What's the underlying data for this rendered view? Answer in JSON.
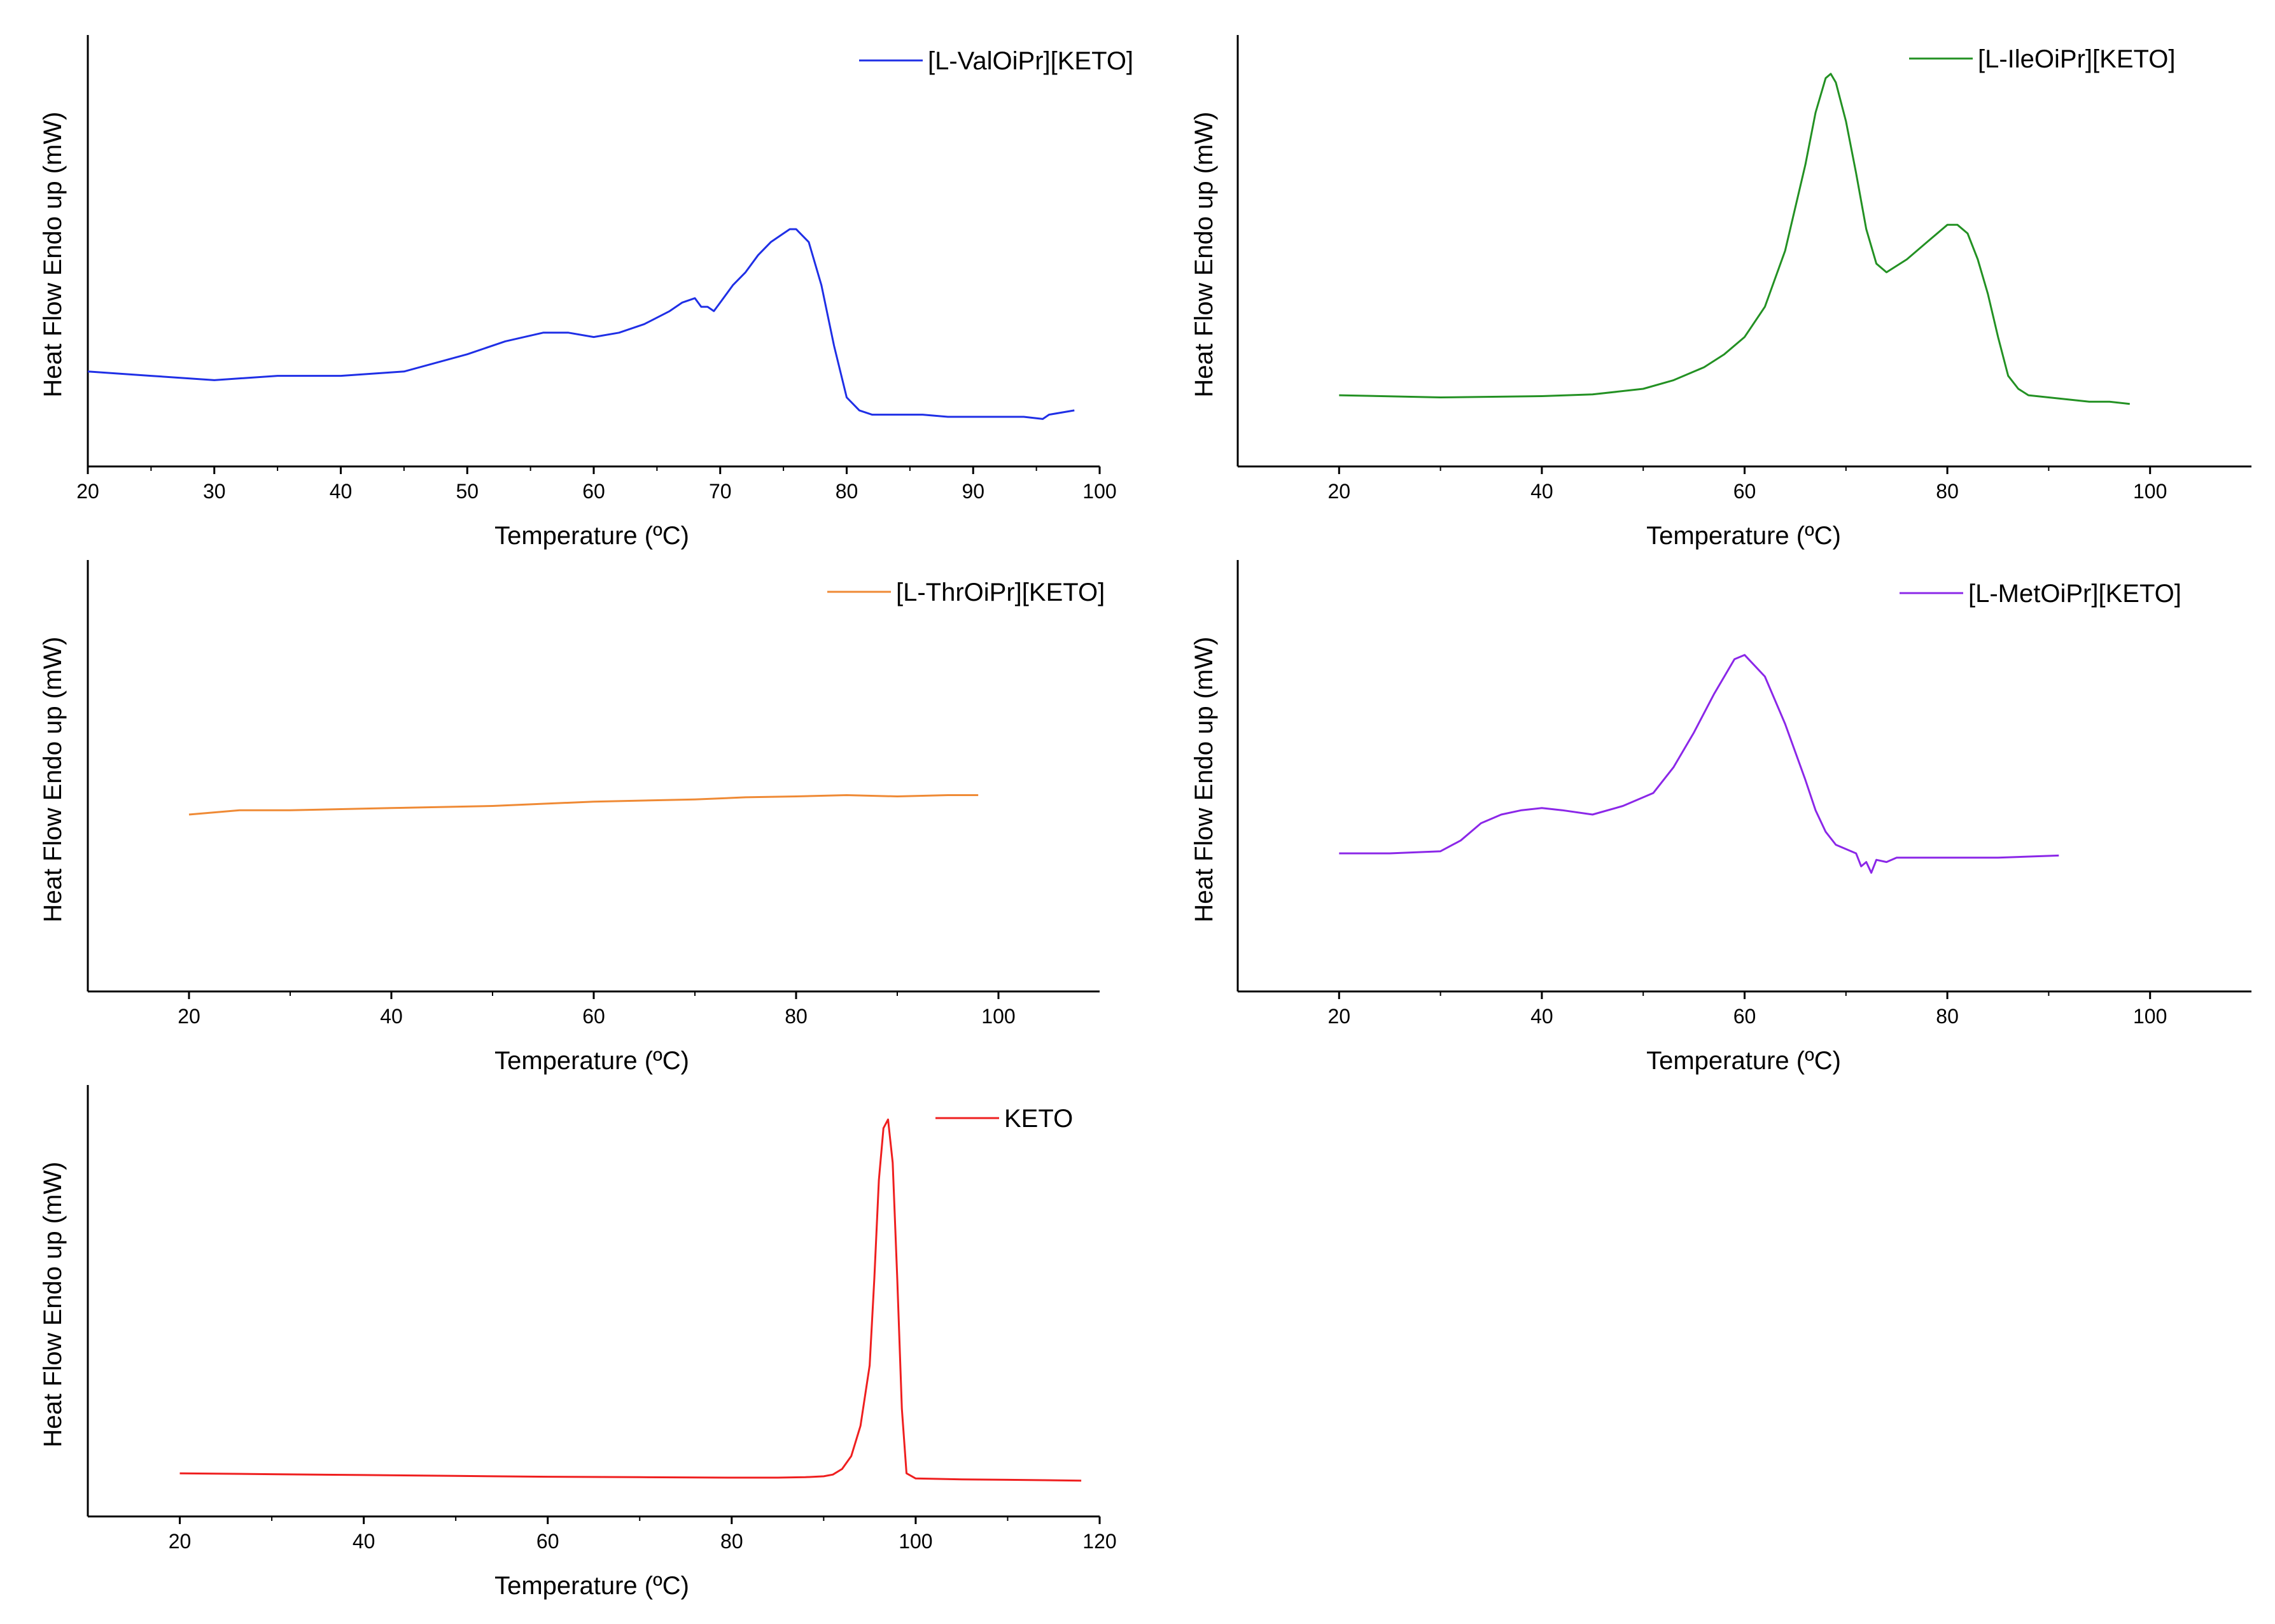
{
  "figure_type": "DSC thermograms",
  "chart_data": [
    {
      "id": "panel-valoipr",
      "type": "line",
      "xlabel": "Temperature (°C)",
      "xlabel_display": "Temperature (ºC)",
      "ylabel": "Heat Flow Endo up (mW)",
      "xlim": [
        20,
        100
      ],
      "xticks": [
        20,
        30,
        40,
        50,
        60,
        70,
        80,
        90,
        100
      ],
      "xtick_labels": [
        "20",
        "30",
        "40",
        "50",
        "60",
        "70",
        "80",
        "90",
        "100"
      ],
      "ylim": [
        0,
        1
      ],
      "y_ticks_shown": false,
      "legend": {
        "label": "[L-ValOiPr][KETO]",
        "position": "top-right"
      },
      "series": [
        {
          "name": "[L-ValOiPr][KETO]",
          "color": "#1f2fe6",
          "x": [
            20,
            25,
            30,
            35,
            40,
            45,
            50,
            53,
            56,
            58,
            60,
            62,
            64,
            66,
            67,
            68,
            68.5,
            69,
            69.5,
            70,
            71,
            72,
            73,
            74,
            75,
            75.5,
            76,
            77,
            78,
            79,
            80,
            81,
            82,
            84,
            86,
            88,
            90,
            92,
            94,
            95.5,
            96,
            98
          ],
          "y": [
            0.22,
            0.21,
            0.2,
            0.21,
            0.21,
            0.22,
            0.26,
            0.29,
            0.31,
            0.31,
            0.3,
            0.31,
            0.33,
            0.36,
            0.38,
            0.39,
            0.37,
            0.37,
            0.36,
            0.38,
            0.42,
            0.45,
            0.49,
            0.52,
            0.54,
            0.55,
            0.55,
            0.52,
            0.42,
            0.28,
            0.16,
            0.13,
            0.12,
            0.12,
            0.12,
            0.115,
            0.115,
            0.115,
            0.115,
            0.11,
            0.12,
            0.13
          ]
        }
      ]
    },
    {
      "id": "panel-ileoipr",
      "type": "line",
      "xlabel": "Temperature (°C)",
      "xlabel_display": "Temperature (ºC)",
      "ylabel": "Heat Flow Endo up (mW)",
      "xlim": [
        10,
        110
      ],
      "xticks": [
        20,
        40,
        60,
        80,
        100
      ],
      "xtick_labels": [
        "20",
        "40",
        "60",
        "80",
        "100"
      ],
      "ylim": [
        0,
        1
      ],
      "y_ticks_shown": false,
      "legend": {
        "label": "[L-IleOiPr][KETO]",
        "position": "top-right"
      },
      "series": [
        {
          "name": "[L-IleOiPr][KETO]",
          "color": "#239123",
          "x": [
            20,
            30,
            40,
            45,
            50,
            53,
            56,
            58,
            60,
            62,
            64,
            66,
            67,
            68,
            68.5,
            69,
            70,
            71,
            72,
            73,
            74,
            76,
            78,
            80,
            81,
            82,
            83,
            84,
            85,
            86,
            87,
            88,
            90,
            92,
            94,
            96,
            98
          ],
          "y": [
            0.165,
            0.16,
            0.163,
            0.167,
            0.18,
            0.2,
            0.23,
            0.26,
            0.3,
            0.37,
            0.5,
            0.7,
            0.82,
            0.9,
            0.91,
            0.89,
            0.8,
            0.68,
            0.55,
            0.47,
            0.45,
            0.48,
            0.52,
            0.56,
            0.56,
            0.54,
            0.48,
            0.4,
            0.3,
            0.21,
            0.18,
            0.165,
            0.16,
            0.155,
            0.15,
            0.15,
            0.145
          ]
        }
      ]
    },
    {
      "id": "panel-throipr",
      "type": "line",
      "xlabel": "Temperature (°C)",
      "xlabel_display": "Temperature (ºC)",
      "ylabel": "Heat Flow Endo up (mW)",
      "xlim": [
        10,
        110
      ],
      "xticks": [
        20,
        40,
        60,
        80,
        100
      ],
      "xtick_labels": [
        "20",
        "40",
        "60",
        "80",
        "100"
      ],
      "ylim": [
        0,
        1
      ],
      "y_ticks_shown": false,
      "legend": {
        "label": "[L-ThrOiPr][KETO]",
        "position": "top-right"
      },
      "series": [
        {
          "name": "[L-ThrOiPr][KETO]",
          "color": "#ef8a35",
          "x": [
            20,
            25,
            30,
            40,
            50,
            60,
            70,
            75,
            80,
            85,
            90,
            95,
            98
          ],
          "y": [
            0.41,
            0.42,
            0.42,
            0.425,
            0.43,
            0.44,
            0.445,
            0.45,
            0.452,
            0.455,
            0.452,
            0.455,
            0.455
          ]
        }
      ]
    },
    {
      "id": "panel-metoipr",
      "type": "line",
      "xlabel": "Temperature (°C)",
      "xlabel_display": "Temperature (ºC)",
      "ylabel": "Heat Flow Endo up (mW)",
      "xlim": [
        10,
        110
      ],
      "xticks": [
        20,
        40,
        60,
        80,
        100
      ],
      "xtick_labels": [
        "20",
        "40",
        "60",
        "80",
        "100"
      ],
      "ylim": [
        0,
        1
      ],
      "y_ticks_shown": false,
      "legend": {
        "label": "[L-MetOiPr][KETO]",
        "position": "top-right"
      },
      "series": [
        {
          "name": "[L-MetOiPr][KETO]",
          "color": "#8b27e8",
          "x": [
            20,
            25,
            30,
            32,
            34,
            36,
            38,
            40,
            42,
            45,
            48,
            51,
            53,
            55,
            57,
            59,
            60,
            62,
            64,
            66,
            67,
            68,
            69,
            70,
            71,
            71.5,
            72,
            72.5,
            73,
            74,
            75,
            80,
            85,
            91
          ],
          "y": [
            0.32,
            0.32,
            0.325,
            0.35,
            0.39,
            0.41,
            0.42,
            0.425,
            0.42,
            0.41,
            0.43,
            0.46,
            0.52,
            0.6,
            0.69,
            0.77,
            0.78,
            0.73,
            0.62,
            0.49,
            0.42,
            0.37,
            0.34,
            0.33,
            0.32,
            0.29,
            0.3,
            0.275,
            0.305,
            0.3,
            0.31,
            0.31,
            0.31,
            0.315
          ]
        }
      ]
    },
    {
      "id": "panel-keto",
      "type": "line",
      "xlabel": "Temperature (°C)",
      "xlabel_display": "Temperature (ºC)",
      "ylabel": "Heat Flow Endo up (mW)",
      "xlim": [
        10,
        120
      ],
      "xticks": [
        20,
        40,
        60,
        80,
        100,
        120
      ],
      "xtick_labels": [
        "20",
        "40",
        "60",
        "80",
        "100",
        "120"
      ],
      "ylim": [
        0,
        1
      ],
      "y_ticks_shown": false,
      "legend": {
        "label": "KETO",
        "position": "top-right"
      },
      "series": [
        {
          "name": "KETO",
          "color": "#ef1f1f",
          "x": [
            20,
            30,
            40,
            50,
            60,
            70,
            80,
            85,
            88,
            90,
            91,
            92,
            93,
            94,
            95,
            95.5,
            96,
            96.5,
            97,
            97.5,
            98,
            98.5,
            99,
            100,
            105,
            110,
            118
          ],
          "y": [
            0.1,
            0.098,
            0.096,
            0.094,
            0.092,
            0.091,
            0.09,
            0.09,
            0.091,
            0.093,
            0.097,
            0.11,
            0.14,
            0.21,
            0.35,
            0.55,
            0.78,
            0.9,
            0.92,
            0.82,
            0.55,
            0.25,
            0.1,
            0.088,
            0.086,
            0.085,
            0.083
          ]
        }
      ]
    }
  ]
}
